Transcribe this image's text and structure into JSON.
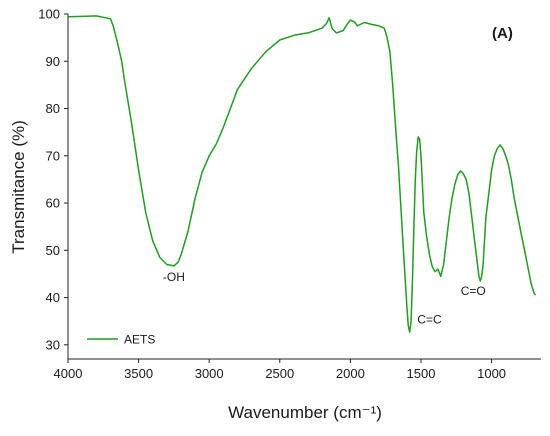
{
  "chart_data": {
    "type": "line",
    "title": "",
    "panel_label": "(A)",
    "xlabel": "Wavenumber (cm⁻¹)",
    "ylabel": "Transmitance (%)",
    "xlim": [
      4000,
      650
    ],
    "ylim": [
      27,
      100
    ],
    "x_ticks": [
      4000,
      3500,
      3000,
      2500,
      2000,
      1500,
      1000
    ],
    "y_ticks": [
      30,
      40,
      50,
      60,
      70,
      80,
      90,
      100
    ],
    "grid": false,
    "legend_position": "bottom-left",
    "series": [
      {
        "name": "AETS",
        "color": "#1e9e1e",
        "points": [
          [
            4000,
            99.4
          ],
          [
            3900,
            99.5
          ],
          [
            3800,
            99.6
          ],
          [
            3750,
            99.3
          ],
          [
            3700,
            99.0
          ],
          [
            3680,
            97.5
          ],
          [
            3650,
            94.0
          ],
          [
            3620,
            90.0
          ],
          [
            3600,
            86.0
          ],
          [
            3550,
            77.0
          ],
          [
            3500,
            67.0
          ],
          [
            3450,
            58.0
          ],
          [
            3400,
            52.0
          ],
          [
            3350,
            48.5
          ],
          [
            3300,
            47.0
          ],
          [
            3250,
            46.7
          ],
          [
            3220,
            47.5
          ],
          [
            3200,
            49.0
          ],
          [
            3150,
            54.0
          ],
          [
            3100,
            61.0
          ],
          [
            3050,
            66.5
          ],
          [
            3000,
            70.0
          ],
          [
            2950,
            72.5
          ],
          [
            2900,
            76.0
          ],
          [
            2850,
            80.0
          ],
          [
            2800,
            84.0
          ],
          [
            2700,
            88.5
          ],
          [
            2600,
            92.0
          ],
          [
            2500,
            94.5
          ],
          [
            2400,
            95.5
          ],
          [
            2300,
            96.0
          ],
          [
            2200,
            97.0
          ],
          [
            2170,
            98.0
          ],
          [
            2150,
            99.2
          ],
          [
            2130,
            97.0
          ],
          [
            2100,
            96.0
          ],
          [
            2050,
            96.5
          ],
          [
            2020,
            98.0
          ],
          [
            2000,
            98.7
          ],
          [
            1970,
            98.3
          ],
          [
            1950,
            97.5
          ],
          [
            1900,
            98.2
          ],
          [
            1850,
            97.8
          ],
          [
            1800,
            97.5
          ],
          [
            1760,
            97.0
          ],
          [
            1740,
            95.0
          ],
          [
            1720,
            92.0
          ],
          [
            1700,
            85.0
          ],
          [
            1680,
            76.0
          ],
          [
            1660,
            68.0
          ],
          [
            1640,
            58.0
          ],
          [
            1620,
            48.0
          ],
          [
            1600,
            38.0
          ],
          [
            1590,
            34.0
          ],
          [
            1580,
            32.7
          ],
          [
            1570,
            35.0
          ],
          [
            1560,
            44.0
          ],
          [
            1550,
            55.0
          ],
          [
            1540,
            65.0
          ],
          [
            1530,
            71.0
          ],
          [
            1520,
            74.0
          ],
          [
            1510,
            73.5
          ],
          [
            1500,
            70.0
          ],
          [
            1490,
            64.0
          ],
          [
            1480,
            58.0
          ],
          [
            1460,
            53.0
          ],
          [
            1440,
            49.0
          ],
          [
            1420,
            46.5
          ],
          [
            1400,
            45.5
          ],
          [
            1380,
            46.0
          ],
          [
            1360,
            44.5
          ],
          [
            1340,
            47.0
          ],
          [
            1320,
            52.0
          ],
          [
            1300,
            57.0
          ],
          [
            1280,
            61.0
          ],
          [
            1260,
            64.0
          ],
          [
            1240,
            66.0
          ],
          [
            1220,
            66.8
          ],
          [
            1200,
            66.2
          ],
          [
            1180,
            65.0
          ],
          [
            1160,
            62.0
          ],
          [
            1140,
            57.0
          ],
          [
            1120,
            52.0
          ],
          [
            1100,
            47.0
          ],
          [
            1090,
            44.5
          ],
          [
            1080,
            43.5
          ],
          [
            1070,
            44.5
          ],
          [
            1060,
            47.0
          ],
          [
            1050,
            52.0
          ],
          [
            1040,
            57.0
          ],
          [
            1020,
            62.0
          ],
          [
            1000,
            67.0
          ],
          [
            980,
            70.0
          ],
          [
            960,
            71.5
          ],
          [
            940,
            72.3
          ],
          [
            920,
            71.5
          ],
          [
            900,
            70.0
          ],
          [
            880,
            68.0
          ],
          [
            860,
            65.0
          ],
          [
            840,
            61.0
          ],
          [
            820,
            58.0
          ],
          [
            800,
            55.0
          ],
          [
            780,
            52.0
          ],
          [
            760,
            49.0
          ],
          [
            740,
            46.0
          ],
          [
            720,
            43.0
          ],
          [
            700,
            41.0
          ],
          [
            690,
            40.5
          ]
        ]
      }
    ],
    "annotations": [
      {
        "text": "-OH",
        "x": 3250,
        "y": 43.5
      },
      {
        "text": "C=C",
        "x": 1440,
        "y": 34.5
      },
      {
        "text": "C=O",
        "x": 1130,
        "y": 40.5
      }
    ]
  }
}
